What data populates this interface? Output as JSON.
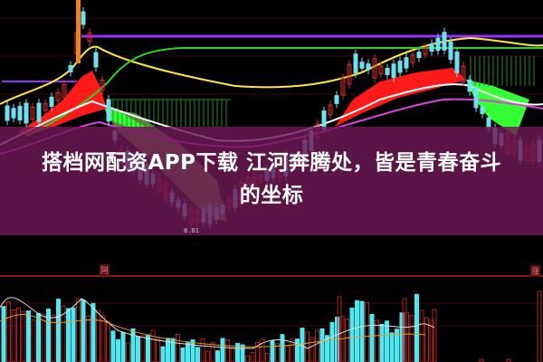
{
  "headline": {
    "line1": "搭档网配资APP下载 江河奔腾处，皆是青春奋斗",
    "line2": "的坐标"
  },
  "chart": {
    "price_label": "8.01",
    "marker_left": "阿",
    "marker_right": "涨"
  },
  "colors": {
    "overlay": "#6e1854",
    "ma_yellow": "#ffe640",
    "ma_green": "#30d020",
    "ma_purple": "#9a30ff",
    "ma_white": "#ffffff",
    "ma_magenta": "#e040e0",
    "band_red": "#ff1a1a",
    "band_green": "#33ff33",
    "volume_up": "#b02020",
    "volume_down": "#50e8f0"
  }
}
